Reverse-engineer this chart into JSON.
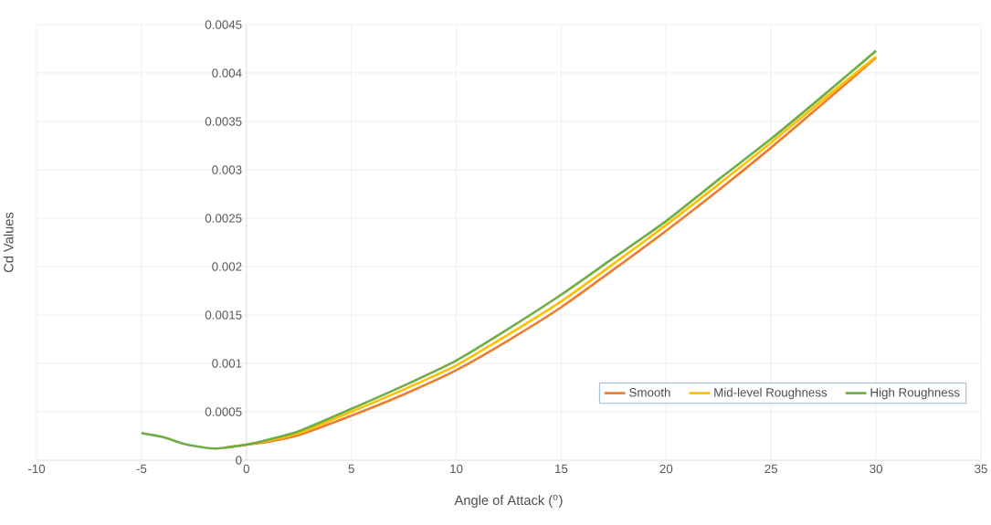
{
  "chart_data": {
    "type": "line",
    "xlabel": "Angle of Attack ($^{o}$)",
    "ylabel": "Cd Values",
    "x": [
      -5,
      -4,
      -3,
      -2,
      -1.5,
      -1,
      0,
      1,
      2.5,
      5,
      7.5,
      10,
      12.5,
      15,
      17.5,
      20,
      22.5,
      25,
      27.5,
      30
    ],
    "series": [
      {
        "name": "Smooth",
        "color": "#ed7d31",
        "values": [
          null,
          null,
          null,
          null,
          null,
          0.00013,
          0.00016,
          0.00019,
          0.00026,
          0.00046,
          0.00068,
          0.00093,
          0.00124,
          0.00158,
          0.00197,
          0.00237,
          0.00279,
          0.00323,
          0.00369,
          0.00416
        ]
      },
      {
        "name": "Mid-level Roughness",
        "color": "#ffc000",
        "values": [
          null,
          null,
          null,
          null,
          null,
          0.00013,
          0.00016,
          0.0002,
          0.00028,
          0.0005,
          0.00073,
          0.00098,
          0.0013,
          0.00164,
          0.00203,
          0.00243,
          0.00285,
          0.00328,
          0.00373,
          0.00417
        ]
      },
      {
        "name": "High Roughness",
        "color": "#70ad47",
        "values": [
          0.00028,
          0.00024,
          0.00017,
          0.00013,
          0.00012,
          0.00013,
          0.00016,
          0.00021,
          0.0003,
          0.00053,
          0.00077,
          0.00103,
          0.00136,
          0.00171,
          0.00209,
          0.00247,
          0.0029,
          0.00332,
          0.00377,
          0.00423
        ]
      }
    ],
    "xlim": [
      -10,
      35
    ],
    "xticks": [
      -10,
      -5,
      0,
      5,
      10,
      15,
      20,
      25,
      30,
      35
    ],
    "ylim": [
      0,
      0.0045
    ],
    "yticks": [
      0,
      0.0005,
      0.001,
      0.0015,
      0.002,
      0.0025,
      0.003,
      0.0035,
      0.004,
      0.0045
    ],
    "grid": true,
    "legend": "bottom right",
    "marker": "none",
    "line_style": "solid"
  }
}
